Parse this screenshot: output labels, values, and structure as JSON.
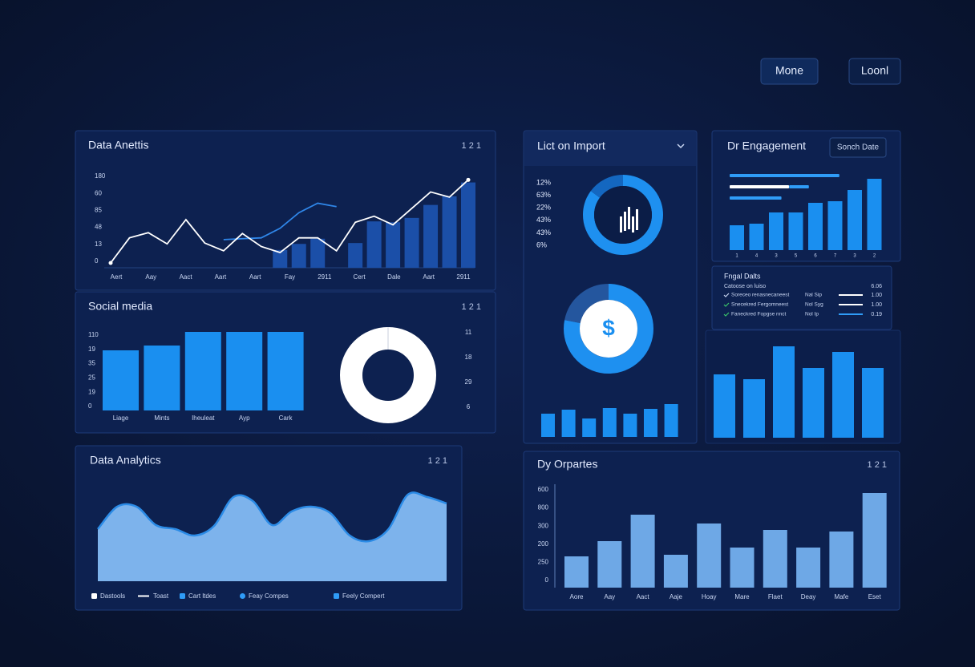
{
  "header": {
    "buttons": [
      "Mone",
      "Loonl"
    ]
  },
  "analytics": {
    "title": "Data Anettis",
    "badge": "1 2 1",
    "y_labels": [
      "180",
      "60",
      "85",
      "48",
      "13",
      "0"
    ],
    "x_labels": [
      "Aert",
      "Aay",
      "Aact",
      "Aart",
      "Aart",
      "Fay",
      "2911",
      "Cert",
      "Dale",
      "Aart",
      "2911"
    ],
    "ylim": [
      0,
      100
    ],
    "line": {
      "color": "#ffffff",
      "values": [
        0,
        29,
        35,
        22,
        50,
        23,
        14,
        34,
        19,
        12,
        29,
        29,
        14,
        47,
        54,
        44,
        63,
        82,
        76,
        96
      ]
    },
    "line2": {
      "color": "#2f86e8",
      "values": [
        null,
        null,
        null,
        null,
        null,
        null,
        27,
        28,
        29,
        40,
        58,
        69,
        65,
        null,
        null,
        null,
        null,
        null,
        null,
        null
      ]
    },
    "bars": {
      "color": "#1b4fa8",
      "values": [
        null,
        null,
        null,
        null,
        null,
        null,
        null,
        null,
        null,
        15,
        22,
        28,
        null,
        23,
        48,
        47,
        52,
        67,
        77,
        93
      ]
    }
  },
  "social": {
    "title": "Social media",
    "badge": "1 2 1",
    "y_labels": [
      "110",
      "19",
      "35",
      "25",
      "19",
      "0"
    ],
    "right_labels": [
      "11",
      "18",
      "29",
      "6"
    ],
    "categories": [
      "Liage",
      "Mints",
      "Iheuleat",
      "Ayp",
      "Cark"
    ],
    "values": [
      75,
      81,
      98,
      98,
      98
    ],
    "ylim": [
      0,
      100
    ],
    "color": "#1a8ff0"
  },
  "import": {
    "title": "Lict on Import",
    "percent_labels": [
      "12%",
      "63%",
      "22%",
      "43%",
      "43%",
      "6%"
    ],
    "donut": {
      "values": [
        85,
        15
      ],
      "colors": [
        "#1e90f0",
        "#1467c0"
      ]
    },
    "revenue_donut": {
      "symbol": "$",
      "values": [
        78,
        22
      ],
      "colors": [
        "#1e90f0",
        "#24569e"
      ]
    },
    "bars": {
      "values": [
        29,
        34,
        23,
        36,
        29,
        35,
        41
      ],
      "ylim": [
        0,
        50
      ],
      "color": "#1a8ff0"
    }
  },
  "engagement": {
    "title": "Dr Engagement",
    "button": "Sonch Date",
    "progress": {
      "scale": [
        0,
        100
      ],
      "rows": [
        {
          "values": [
            72
          ],
          "colors": [
            "#2f9cf7"
          ]
        },
        {
          "values": [
            39,
            13
          ],
          "colors": [
            "#ffffff",
            "#2f9cf7"
          ]
        },
        {
          "values": [
            34
          ],
          "colors": [
            "#2f9cf7"
          ]
        }
      ]
    },
    "categories": [
      "1",
      "4",
      "3",
      "5",
      "6",
      "7",
      "3",
      "2"
    ],
    "values": [
      31,
      33,
      47,
      47,
      59,
      61,
      75,
      89
    ],
    "ylim": [
      0,
      100
    ],
    "color": "#1a8ff0"
  },
  "details": {
    "title": "Fngal Dalts",
    "header_row": [
      "Catoose on luiso",
      "6.06"
    ],
    "rows": [
      {
        "label": "Soreceo renasnecaneest",
        "tag": "Nal Sip",
        "value": "1.00",
        "bar_color": "#ffffff"
      },
      {
        "label": "Snecekred Fergomneest",
        "tag": "Nol Syg",
        "value": "1.00",
        "bar_color": "#ffffff"
      },
      {
        "label": "Faneckred Fopgse nnct",
        "tag": "Nol Ip",
        "value": "0.19",
        "bar_color": "#2f9cf7"
      }
    ]
  },
  "big_bars": {
    "values": [
      79,
      73,
      114,
      87,
      107,
      87
    ],
    "ylim": [
      0,
      130
    ],
    "color": "#1a8ff0"
  },
  "area": {
    "title": "Data Analytics",
    "badge": "1 2 1",
    "values": [
      65,
      93,
      93,
      70,
      65,
      57,
      69,
      105,
      100,
      70,
      87,
      93,
      85,
      57,
      50,
      65,
      108,
      105,
      97
    ],
    "ylim": [
      0,
      120
    ],
    "fill": "#7db3ec",
    "stroke": "#2b8be6",
    "legend": [
      {
        "name": "Dastools",
        "shape": "square",
        "color": "#ffffff"
      },
      {
        "name": "Toast",
        "shape": "line",
        "color": "#ffffff"
      },
      {
        "name": "Cart ltdes",
        "shape": "square",
        "color": "#2f9cf7"
      },
      {
        "name": "Feay Compes",
        "shape": "circle",
        "color": "#2f9cf7"
      },
      {
        "name": "Feely Compert",
        "shape": "square",
        "color": "#2f9cf7"
      }
    ]
  },
  "opportunities": {
    "title": "Dy Orpartes",
    "badge": "1 2 1",
    "y_labels": [
      "600",
      "800",
      "300",
      "200",
      "250",
      "0"
    ],
    "categories": [
      "Aore",
      "Aay",
      "Aact",
      "Aaje",
      "Hoay",
      "Mare",
      "Flaet",
      "Deay",
      "Mafe",
      "Eset"
    ],
    "values": [
      39,
      58,
      91,
      41,
      80,
      50,
      72,
      50,
      70,
      118
    ],
    "ylim": [
      0,
      130
    ],
    "color": "#6ea8e6"
  }
}
